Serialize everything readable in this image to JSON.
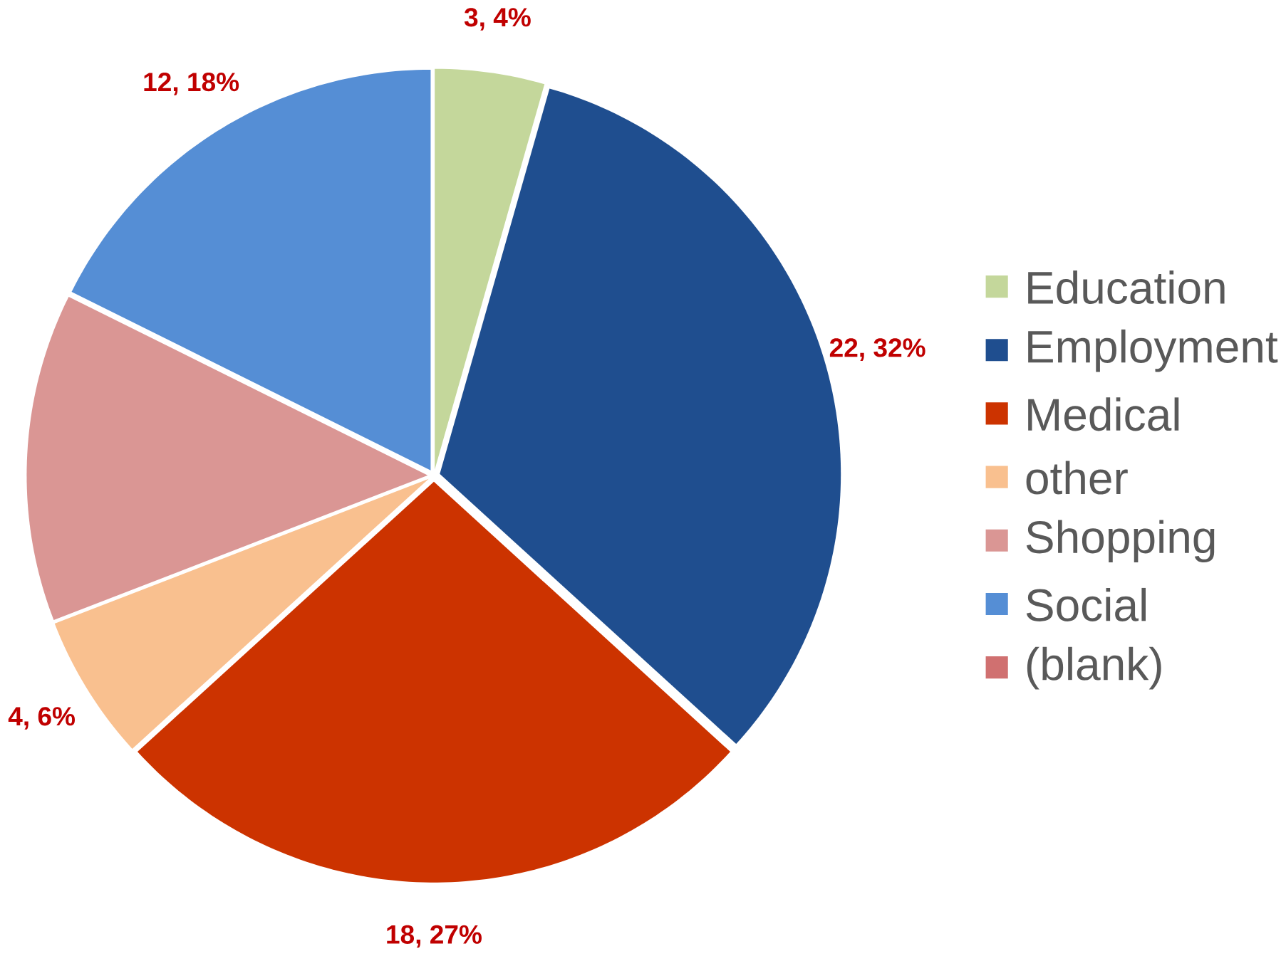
{
  "chart_data": {
    "type": "pie",
    "categories": [
      "Education",
      "Employment",
      "Medical",
      "other",
      "Shopping",
      "Social",
      "(blank)"
    ],
    "values": [
      3,
      22,
      18,
      4,
      9,
      12,
      0
    ],
    "value_labels": [
      "3, 4%",
      "22, 32%",
      "18, 27%",
      "4, 6%",
      null,
      "12, 18%",
      null
    ],
    "colors": [
      "#c4d79b",
      "#1f4e8f",
      "#cc3300",
      "#f9c08f",
      "#da9694",
      "#558ed5",
      "#d07070"
    ],
    "legend": "right"
  }
}
